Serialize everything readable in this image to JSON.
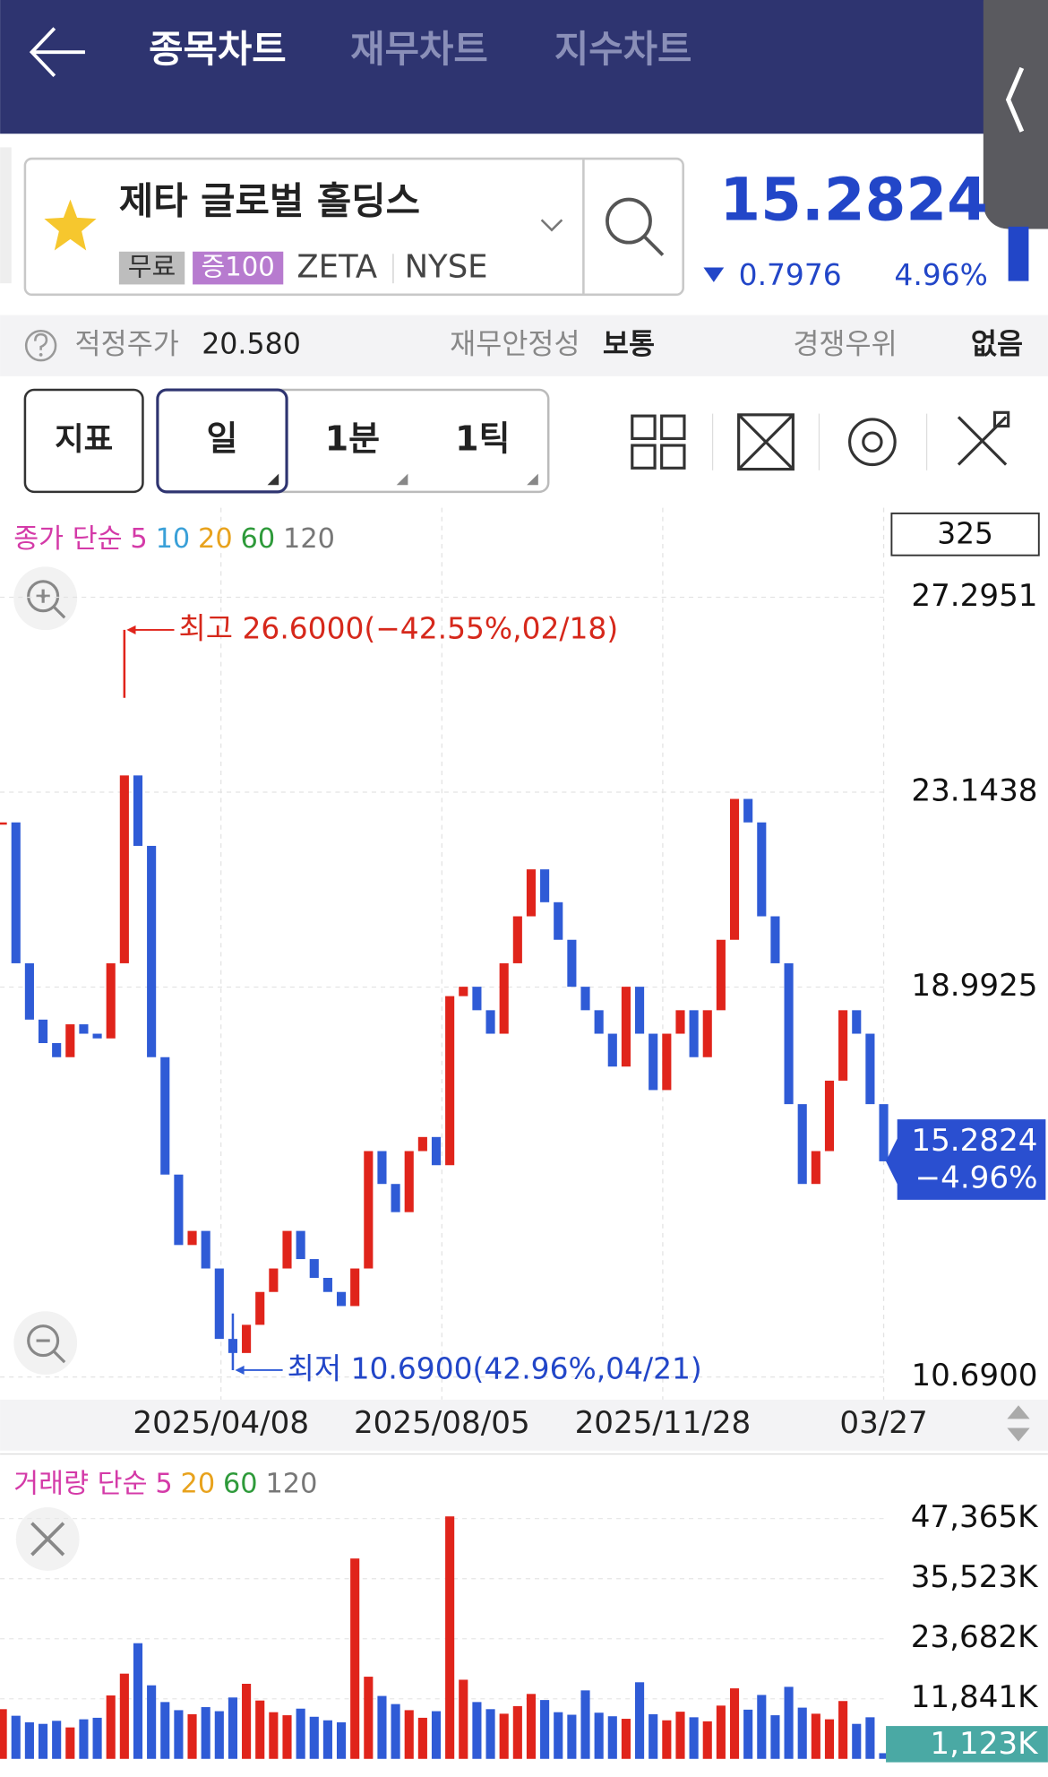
{
  "header": {
    "tabs": [
      "종목차트",
      "재무차트",
      "지수차트"
    ]
  },
  "stock": {
    "name": "제타 글로벌 홀딩스",
    "badges": [
      "무료",
      "증100"
    ],
    "ticker": "ZETA",
    "exchange": "NYSE",
    "price": 15.2824,
    "change": 0.7976,
    "change_pct": "4.96%"
  },
  "info": {
    "fair_price_label": "적정주가",
    "fair_price": "20.580",
    "stability_label": "재무안정성",
    "stability": "보통",
    "advantage_label": "경쟁우위",
    "advantage": "없음"
  },
  "controls": {
    "indicator": "지표",
    "periods": [
      "일",
      "1분",
      "1틱"
    ]
  },
  "chart_data": [
    {
      "type": "candlestick",
      "legend_title": "종가 단순",
      "ma_periods": [
        {
          "label": "5",
          "color": "#d43aa8"
        },
        {
          "label": "10",
          "color": "#3aa0d8"
        },
        {
          "label": "20",
          "color": "#e8a21c"
        },
        {
          "label": "60",
          "color": "#2e9a3a"
        },
        {
          "label": "120",
          "color": "#777777"
        }
      ],
      "bar_count": 325,
      "x_labels": [
        "2025/04/08",
        "2025/08/05",
        "2025/11/28",
        "03/27"
      ],
      "values": [
        22.5,
        19.5,
        18.3,
        17.8,
        17.5,
        18.2,
        18.0,
        17.9,
        19.5,
        23.5,
        22.0,
        17.5,
        15.0,
        13.5,
        13.8,
        13.0,
        11.5,
        11.2,
        11.8,
        12.5,
        13.0,
        13.8,
        13.2,
        12.8,
        12.5,
        12.2,
        13.0,
        15.5,
        14.8,
        14.2,
        15.5,
        15.8,
        15.2,
        18.8,
        19.0,
        18.5,
        18.0,
        19.5,
        20.5,
        21.5,
        20.8,
        20.0,
        19.0,
        18.5,
        18.0,
        17.3,
        19.0,
        18.0,
        16.8,
        18.0,
        18.5,
        17.5,
        18.5,
        20.0,
        23.0,
        22.5,
        20.5,
        19.5,
        16.5,
        14.8,
        15.5,
        17.0,
        18.5,
        18.0,
        16.5,
        15.2824
      ],
      "up_color": "#e0241b",
      "down_color": "#2f5bd6",
      "ylim": [
        10.69,
        27.2951
      ],
      "yticks": [
        27.2951,
        23.1438,
        18.9925,
        {
          "value": 10.69,
          "label": "10.6900"
        }
      ],
      "grid": true,
      "high": {
        "value": 26.6,
        "label": "최고 26.6000(−42.55%,02/18)"
      },
      "low": {
        "value": 10.69,
        "label": "최저 10.6900(42.96%,04/21)"
      },
      "change_label": "−4.96%"
    },
    {
      "type": "bar",
      "legend_title": "거래량 단순",
      "ma_periods": [
        {
          "label": "5",
          "color": "#d43aa8"
        },
        {
          "label": "20",
          "color": "#e8a21c"
        },
        {
          "label": "60",
          "color": "#2e9a3a"
        },
        {
          "label": "120",
          "color": "#777777"
        }
      ],
      "values": [
        9800,
        8500,
        7200,
        6900,
        7500,
        6200,
        7800,
        8100,
        12500,
        16800,
        22800,
        14500,
        11200,
        9600,
        8800,
        10200,
        9400,
        12100,
        14800,
        11500,
        9200,
        8600,
        9900,
        8300,
        7600,
        7200,
        39500,
        16200,
        12400,
        10800,
        9600,
        8100,
        9400,
        47800,
        15600,
        11200,
        9800,
        8900,
        10400,
        12800,
        11600,
        9200,
        8700,
        13500,
        9100,
        8400,
        7900,
        15100,
        8800,
        7600,
        9300,
        8200,
        7400,
        10500,
        13900,
        9700,
        12600,
        8600,
        14200,
        10100,
        8900,
        7800,
        11400,
        6900,
        8200,
        1123
      ],
      "last_label": "1,123K",
      "ylim": [
        0,
        59206
      ],
      "yticks": [
        {
          "value": 47365,
          "label": "47,365K"
        },
        {
          "value": 35523,
          "label": "35,523K"
        },
        {
          "value": 23682,
          "label": "23,682K"
        },
        {
          "value": 11841,
          "label": "11,841K"
        }
      ]
    }
  ]
}
